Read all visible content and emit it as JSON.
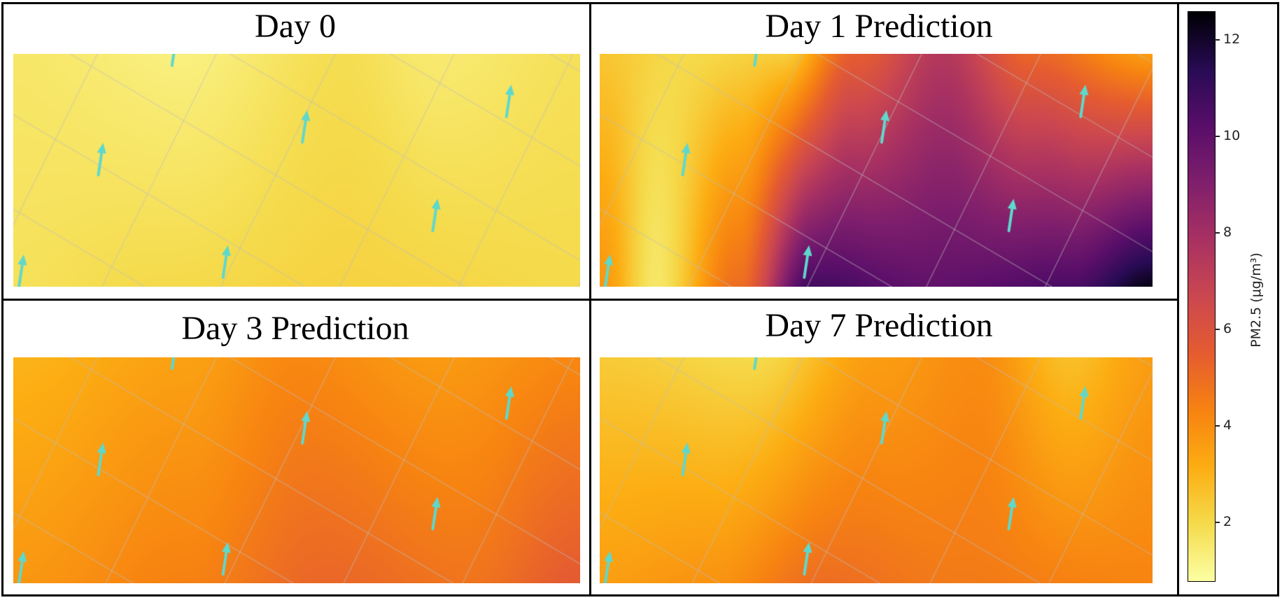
{
  "chart_data": {
    "type": "heatmap",
    "panels": [
      {
        "title": "Day 0",
        "colorstops": [
          [
            0.0,
            0.0,
            1.6
          ],
          [
            0.3,
            0.0,
            1.3
          ],
          [
            0.58,
            0.0,
            1.9
          ],
          [
            0.75,
            0.0,
            1.5
          ],
          [
            1.0,
            0.0,
            1.8
          ],
          [
            0.0,
            1.0,
            1.8
          ],
          [
            0.25,
            1.0,
            2.0
          ],
          [
            0.6,
            1.0,
            2.2
          ],
          [
            1.0,
            1.0,
            2.0
          ]
        ]
      },
      {
        "title": "Day 1 Prediction",
        "colorstops": [
          [
            0.0,
            0.0,
            2.5
          ],
          [
            0.15,
            0.0,
            2.0
          ],
          [
            0.33,
            0.0,
            2.3
          ],
          [
            0.46,
            0.0,
            5.5
          ],
          [
            0.62,
            0.0,
            7.5
          ],
          [
            0.78,
            0.0,
            5.2
          ],
          [
            1.0,
            0.0,
            3.6
          ],
          [
            0.0,
            1.0,
            3.8
          ],
          [
            0.1,
            1.0,
            1.6
          ],
          [
            0.25,
            1.0,
            5.0
          ],
          [
            0.38,
            1.0,
            10.8
          ],
          [
            0.6,
            1.0,
            10.0
          ],
          [
            0.85,
            1.0,
            10.6
          ],
          [
            1.0,
            1.0,
            12.4
          ]
        ]
      },
      {
        "title": "Day 3 Prediction",
        "colorstops": [
          [
            0.0,
            0.0,
            3.0
          ],
          [
            0.3,
            0.0,
            3.5
          ],
          [
            0.5,
            0.0,
            4.2
          ],
          [
            0.75,
            0.0,
            3.7
          ],
          [
            1.0,
            0.0,
            4.2
          ],
          [
            0.0,
            1.0,
            3.8
          ],
          [
            0.3,
            1.0,
            4.4
          ],
          [
            0.55,
            1.0,
            5.2
          ],
          [
            0.8,
            1.0,
            4.8
          ],
          [
            1.0,
            1.0,
            5.6
          ]
        ]
      },
      {
        "title": "Day 7 Prediction",
        "colorstops": [
          [
            0.0,
            0.0,
            2.4
          ],
          [
            0.28,
            0.0,
            2.0
          ],
          [
            0.5,
            0.0,
            3.6
          ],
          [
            0.68,
            0.0,
            4.1
          ],
          [
            0.85,
            0.0,
            2.7
          ],
          [
            1.0,
            0.0,
            3.6
          ],
          [
            0.0,
            1.0,
            3.6
          ],
          [
            0.2,
            1.0,
            3.9
          ],
          [
            0.4,
            1.0,
            5.0
          ],
          [
            0.65,
            1.0,
            4.6
          ],
          [
            1.0,
            1.0,
            4.3
          ]
        ]
      }
    ],
    "colorbar": {
      "label": "PM2.5 (μg/m³)",
      "ticks": [
        2,
        4,
        6,
        8,
        10,
        12
      ],
      "range": [
        0.8,
        12.6
      ],
      "colormap": "inferno_r"
    },
    "wind_arrows": true,
    "grid": true
  },
  "colors": {
    "arrow": "#5fd8cc",
    "gridline": "#c8c8c8",
    "frame": "#000000"
  }
}
